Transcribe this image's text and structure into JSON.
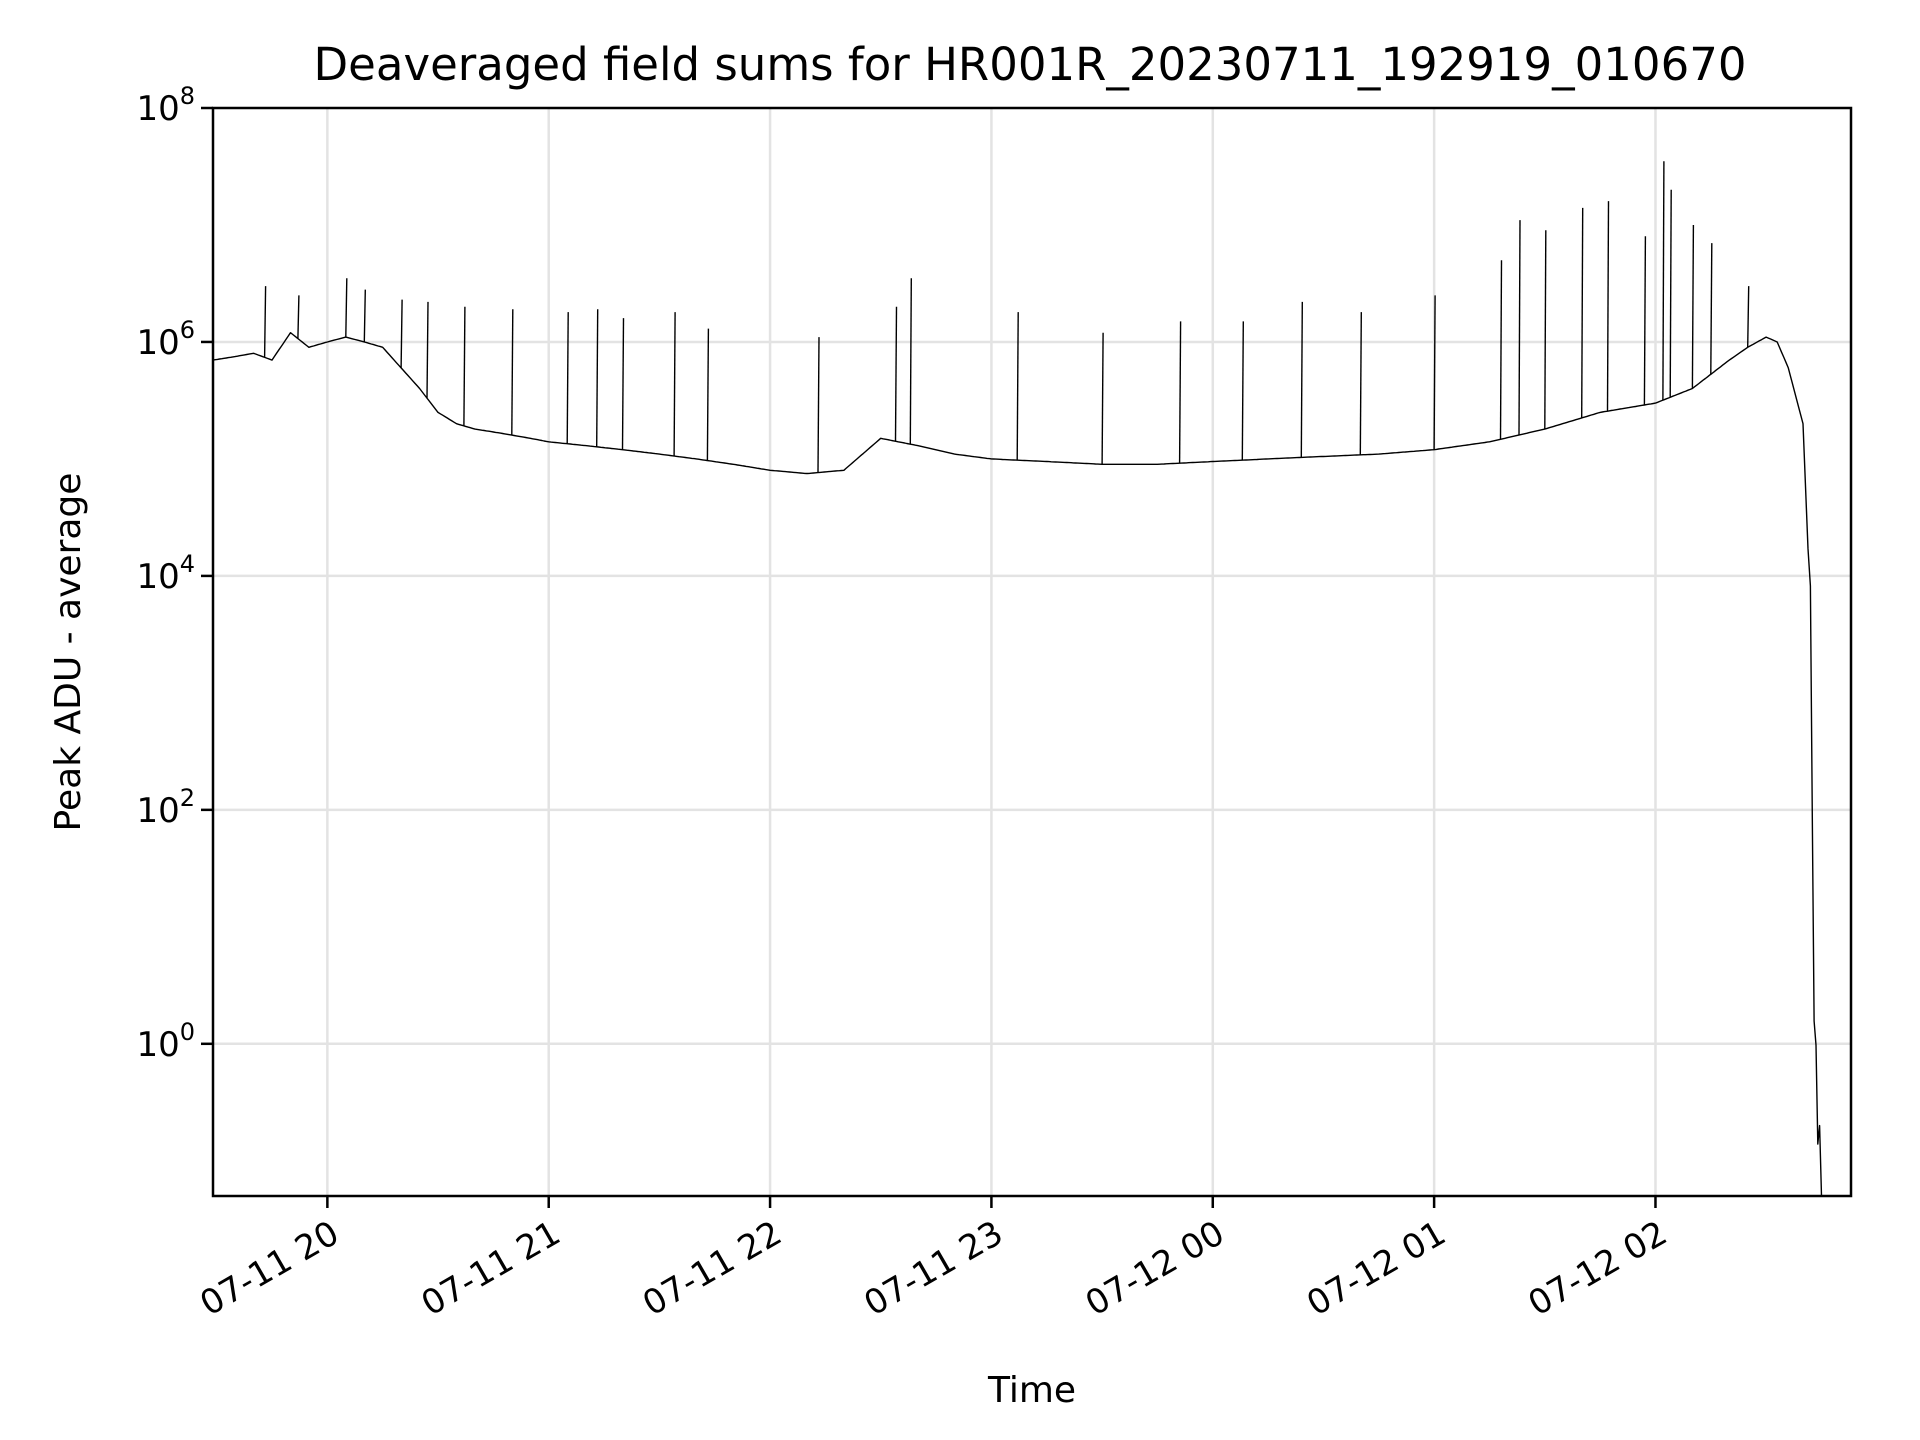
{
  "chart_data": {
    "type": "line",
    "title": "Deaveraged field sums for HR001R_20230711_192919_010670",
    "xlabel": "Time",
    "ylabel": "Peak ADU - average",
    "yscale": "log",
    "ylim": [
      0.05,
      100000000
    ],
    "xlim": [
      "2023-07-11 19:29",
      "2023-07-12 02:53"
    ],
    "grid": true,
    "legend": "none",
    "line_color": "#000000",
    "x_ticks": [
      {
        "t": "2023-07-11 20:00",
        "label": "07-11 20"
      },
      {
        "t": "2023-07-11 21:00",
        "label": "07-11 21"
      },
      {
        "t": "2023-07-11 22:00",
        "label": "07-11 22"
      },
      {
        "t": "2023-07-11 23:00",
        "label": "07-11 23"
      },
      {
        "t": "2023-07-12 00:00",
        "label": "07-12 00"
      },
      {
        "t": "2023-07-12 01:00",
        "label": "07-12 01"
      },
      {
        "t": "2023-07-12 02:00",
        "label": "07-12 02"
      }
    ],
    "y_ticks": [
      {
        "value": 1,
        "base": "10",
        "exp": "0"
      },
      {
        "value": 100,
        "base": "10",
        "exp": "2"
      },
      {
        "value": 10000,
        "base": "10",
        "exp": "4"
      },
      {
        "value": 1000000,
        "base": "10",
        "exp": "6"
      },
      {
        "value": 100000000,
        "base": "10",
        "exp": "8"
      }
    ],
    "series": [
      {
        "x": [
          "2023-07-11 19:29",
          "2023-07-11 19:35",
          "2023-07-11 19:40",
          "2023-07-11 19:45",
          "2023-07-11 19:50",
          "2023-07-11 19:55",
          "2023-07-11 20:00",
          "2023-07-11 20:05",
          "2023-07-11 20:10",
          "2023-07-11 20:15",
          "2023-07-11 20:20",
          "2023-07-11 20:25",
          "2023-07-11 20:30",
          "2023-07-11 20:35",
          "2023-07-11 20:40",
          "2023-07-11 20:45",
          "2023-07-11 20:50",
          "2023-07-11 20:55",
          "2023-07-11 21:00",
          "2023-07-11 21:10",
          "2023-07-11 21:20",
          "2023-07-11 21:30",
          "2023-07-11 21:40",
          "2023-07-11 21:50",
          "2023-07-11 22:00",
          "2023-07-11 22:10",
          "2023-07-11 22:20",
          "2023-07-11 22:30",
          "2023-07-11 22:40",
          "2023-07-11 22:50",
          "2023-07-11 23:00",
          "2023-07-11 23:15",
          "2023-07-11 23:30",
          "2023-07-11 23:45",
          "2023-07-12 00:00",
          "2023-07-12 00:15",
          "2023-07-12 00:30",
          "2023-07-12 00:45",
          "2023-07-12 01:00",
          "2023-07-12 01:15",
          "2023-07-12 01:30",
          "2023-07-12 01:45",
          "2023-07-12 02:00",
          "2023-07-12 02:10",
          "2023-07-12 02:20",
          "2023-07-12 02:25",
          "2023-07-12 02:30",
          "2023-07-12 02:33",
          "2023-07-12 02:36",
          "2023-07-12 02:40",
          "2023-07-12 02:42",
          "2023-07-12 02:43",
          "2023-07-12 02:44",
          "2023-07-12 02:45"
        ],
        "y": [
          700000,
          750000,
          800000,
          700000,
          1200000,
          900000,
          1000000,
          1100000,
          1000000,
          900000,
          600000,
          400000,
          250000,
          200000,
          180000,
          170000,
          160000,
          150000,
          140000,
          130000,
          120000,
          110000,
          100000,
          90000,
          80000,
          75000,
          80000,
          150000,
          130000,
          110000,
          100000,
          95000,
          90000,
          90000,
          95000,
          100000,
          105000,
          110000,
          120000,
          140000,
          180000,
          250000,
          300000,
          400000,
          700000,
          900000,
          1100000,
          1000000,
          600000,
          200000,
          5000,
          1,
          0.2,
          0.05
        ],
        "spikes": [
          [
            "2023-07-11 19:43",
            3000000
          ],
          [
            "2023-07-11 19:52",
            2500000
          ],
          [
            "2023-07-11 20:05",
            3500000
          ],
          [
            "2023-07-11 20:10",
            2800000
          ],
          [
            "2023-07-11 20:20",
            2300000
          ],
          [
            "2023-07-11 20:27",
            2200000
          ],
          [
            "2023-07-11 20:37",
            2000000
          ],
          [
            "2023-07-11 20:50",
            1900000
          ],
          [
            "2023-07-11 21:05",
            1800000
          ],
          [
            "2023-07-11 21:13",
            1900000
          ],
          [
            "2023-07-11 21:20",
            1600000
          ],
          [
            "2023-07-11 21:34",
            1800000
          ],
          [
            "2023-07-11 21:43",
            1300000
          ],
          [
            "2023-07-11 22:13",
            1100000
          ],
          [
            "2023-07-11 22:34",
            2000000
          ],
          [
            "2023-07-11 22:38",
            3500000
          ],
          [
            "2023-07-11 23:07",
            1800000
          ],
          [
            "2023-07-11 23:30",
            1200000
          ],
          [
            "2023-07-11 23:51",
            1500000
          ],
          [
            "2023-07-12 00:08",
            1500000
          ],
          [
            "2023-07-12 00:24",
            2200000
          ],
          [
            "2023-07-12 00:40",
            1800000
          ],
          [
            "2023-07-12 01:00",
            2500000
          ],
          [
            "2023-07-12 01:18",
            5000000
          ],
          [
            "2023-07-12 01:23",
            11000000
          ],
          [
            "2023-07-12 01:30",
            9000000
          ],
          [
            "2023-07-12 01:40",
            14000000
          ],
          [
            "2023-07-12 01:47",
            16000000
          ],
          [
            "2023-07-12 01:57",
            8000000
          ],
          [
            "2023-07-12 02:02",
            35000000
          ],
          [
            "2023-07-12 02:04",
            20000000
          ],
          [
            "2023-07-12 02:10",
            10000000
          ],
          [
            "2023-07-12 02:15",
            7000000
          ],
          [
            "2023-07-12 02:25",
            3000000
          ]
        ]
      }
    ]
  }
}
